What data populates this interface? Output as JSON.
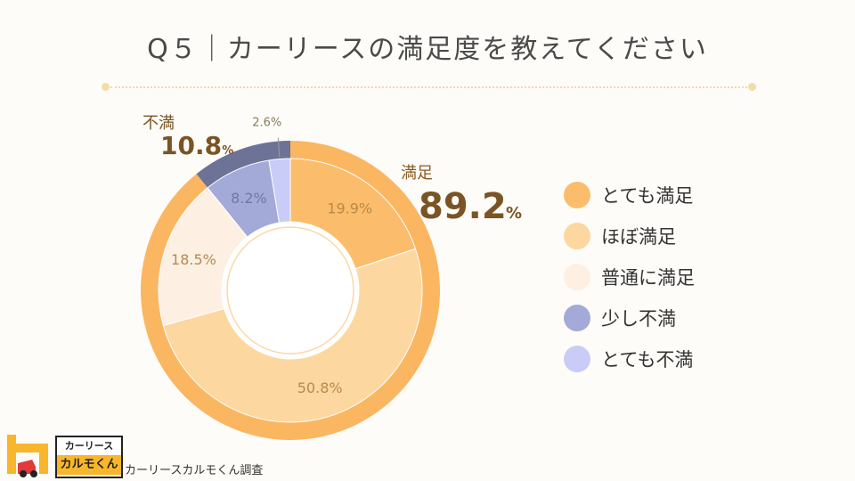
{
  "title": "Q５｜カーリースの満足度を教えてください",
  "chart_data": {
    "type": "pie",
    "style": "double-ring donut",
    "slices": [
      {
        "label": "とても満足",
        "value": 19.9,
        "display": "19.9%",
        "color": "#fbbd6b"
      },
      {
        "label": "ほぼ満足",
        "value": 50.8,
        "display": "50.8%",
        "color": "#fdd7a0"
      },
      {
        "label": "普通に満足",
        "value": 18.5,
        "display": "18.5%",
        "color": "#fdf0e3"
      },
      {
        "label": "少し不満",
        "value": 8.2,
        "display": "8.2%",
        "color": "#a3aad8"
      },
      {
        "label": "とても不満",
        "value": 2.6,
        "display": "2.6%",
        "color": "#c8ccf6"
      }
    ],
    "groups": [
      {
        "label": "満足",
        "value": "89.2",
        "unit": "%",
        "members": [
          "とても満足",
          "ほぼ満足",
          "普通に満足"
        ],
        "color": "#fbb661"
      },
      {
        "label": "不満",
        "value": "10.8",
        "unit": "%",
        "members": [
          "少し不満",
          "とても不満"
        ],
        "color": "#6d7396"
      }
    ],
    "legend": "right"
  },
  "footer": {
    "logo_top": "カーリース",
    "logo_bottom": "カルモくん",
    "credit": "カーリースカルモくん調査"
  }
}
